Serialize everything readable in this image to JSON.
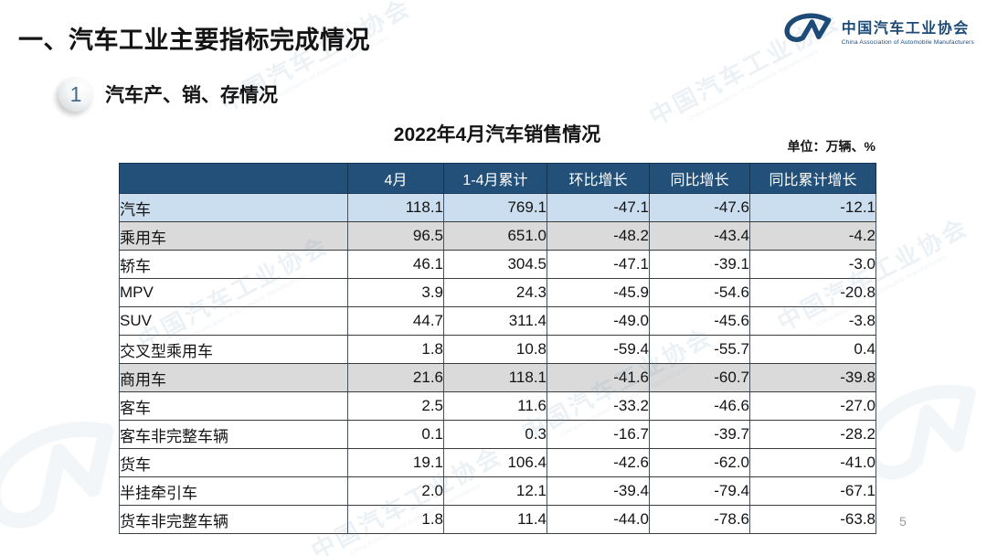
{
  "page": {
    "title": "一、汽车工业主要指标完成情况",
    "section_number": "1",
    "section_title": "汽车产、销、存情况",
    "page_number": "5"
  },
  "logo": {
    "monogram": "CM",
    "name_cn": "中国汽车工业协会",
    "name_en": "China Association of Automobile Manufacturers",
    "color": "#1d4a77"
  },
  "watermark": {
    "text_cn": "中国汽车工业协会",
    "text_en": "China Association of Automobile Manufacturers"
  },
  "table": {
    "title": "2022年4月汽车销售情况",
    "unit_label": "单位：万辆、%",
    "columns": [
      "",
      "4月",
      "1-4月累计",
      "环比增长",
      "同比增长",
      "同比累计增长"
    ],
    "colors": {
      "header_bg": "#235078",
      "total_row_bg": "#cbdeef",
      "band_row_bg": "#dadada",
      "grid_line": "#3c3c3c"
    },
    "rows": [
      {
        "label": "汽车",
        "indent": 0,
        "style": "blue",
        "values": [
          "118.1",
          "769.1",
          "-47.1",
          "-47.6",
          "-12.1"
        ]
      },
      {
        "label": "乘用车",
        "indent": 1,
        "style": "gray",
        "values": [
          "96.5",
          "651.0",
          "-48.2",
          "-43.4",
          "-4.2"
        ]
      },
      {
        "label": "轿车",
        "indent": 2,
        "style": "white",
        "values": [
          "46.1",
          "304.5",
          "-47.1",
          "-39.1",
          "-3.0"
        ]
      },
      {
        "label": "MPV",
        "indent": 2,
        "style": "white",
        "values": [
          "3.9",
          "24.3",
          "-45.9",
          "-54.6",
          "-20.8"
        ]
      },
      {
        "label": "SUV",
        "indent": 2,
        "style": "white",
        "values": [
          "44.7",
          "311.4",
          "-49.0",
          "-45.6",
          "-3.8"
        ]
      },
      {
        "label": "交叉型乘用车",
        "indent": 2,
        "style": "white",
        "values": [
          "1.8",
          "10.8",
          "-59.4",
          "-55.7",
          "0.4"
        ]
      },
      {
        "label": "商用车",
        "indent": 1,
        "style": "gray",
        "values": [
          "21.6",
          "118.1",
          "-41.6",
          "-60.7",
          "-39.8"
        ]
      },
      {
        "label": "客车",
        "indent": 2,
        "style": "white",
        "values": [
          "2.5",
          "11.6",
          "-33.2",
          "-46.6",
          "-27.0"
        ]
      },
      {
        "label": "客车非完整车辆",
        "indent": 3,
        "style": "white",
        "values": [
          "0.1",
          "0.3",
          "-16.7",
          "-39.7",
          "-28.2"
        ]
      },
      {
        "label": "货车",
        "indent": 2,
        "style": "white",
        "values": [
          "19.1",
          "106.4",
          "-42.6",
          "-62.0",
          "-41.0"
        ]
      },
      {
        "label": "半挂牵引车",
        "indent": 3,
        "style": "white",
        "values": [
          "2.0",
          "12.1",
          "-39.4",
          "-79.4",
          "-67.1"
        ]
      },
      {
        "label": "货车非完整车辆",
        "indent": 3,
        "style": "white",
        "values": [
          "1.8",
          "11.4",
          "-44.0",
          "-78.6",
          "-63.8"
        ]
      }
    ]
  },
  "chart_data": {
    "type": "table",
    "title": "2022年4月汽车销售情况",
    "unit": "万辆、%",
    "columns": [
      "4月",
      "1-4月累计",
      "环比增长",
      "同比增长",
      "同比累计增长"
    ],
    "categories": [
      "汽车",
      "乘用车",
      "轿车",
      "MPV",
      "SUV",
      "交叉型乘用车",
      "商用车",
      "客车",
      "客车非完整车辆",
      "货车",
      "半挂牵引车",
      "货车非完整车辆"
    ],
    "series": [
      {
        "name": "4月",
        "values": [
          118.1,
          96.5,
          46.1,
          3.9,
          44.7,
          1.8,
          21.6,
          2.5,
          0.1,
          19.1,
          2.0,
          1.8
        ]
      },
      {
        "name": "1-4月累计",
        "values": [
          769.1,
          651.0,
          304.5,
          24.3,
          311.4,
          10.8,
          118.1,
          11.6,
          0.3,
          106.4,
          12.1,
          11.4
        ]
      },
      {
        "name": "环比增长",
        "values": [
          -47.1,
          -48.2,
          -47.1,
          -45.9,
          -49.0,
          -59.4,
          -41.6,
          -33.2,
          -16.7,
          -42.6,
          -39.4,
          -44.0
        ]
      },
      {
        "name": "同比增长",
        "values": [
          -47.6,
          -43.4,
          -39.1,
          -54.6,
          -45.6,
          -55.7,
          -60.7,
          -46.6,
          -39.7,
          -62.0,
          -79.4,
          -78.6
        ]
      },
      {
        "name": "同比累计增长",
        "values": [
          -12.1,
          -4.2,
          -3.0,
          -20.8,
          -3.8,
          0.4,
          -39.8,
          -27.0,
          -28.2,
          -41.0,
          -67.1,
          -63.8
        ]
      }
    ]
  }
}
